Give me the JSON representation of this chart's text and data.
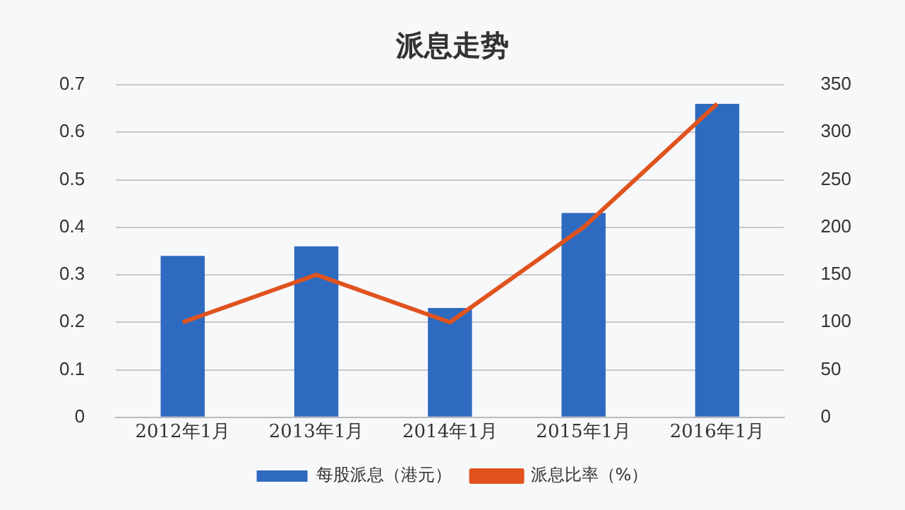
{
  "chart_data": {
    "type": "bar",
    "title": "派息走势",
    "categories": [
      "2012年1月",
      "2013年1月",
      "2014年1月",
      "2015年1月",
      "2016年1月"
    ],
    "series": [
      {
        "name": "每股派息（港元）",
        "color": "#2e6bc0",
        "values": [
          0.34,
          0.36,
          0.23,
          0.43,
          0.66
        ]
      },
      {
        "name": "派息比率（%）",
        "type": "line",
        "axis": "y2",
        "color": "#e0531e",
        "values": [
          100,
          150,
          100,
          200,
          330
        ]
      }
    ],
    "ylim": [
      0,
      0.7
    ],
    "yticks": [
      0,
      0.1,
      0.2,
      0.3,
      0.4,
      0.5,
      0.6,
      0.7
    ],
    "y2lim": [
      0,
      350
    ],
    "y2ticks": [
      0,
      50,
      100,
      150,
      200,
      250,
      300,
      350
    ],
    "grid": "y",
    "legend": "bottom",
    "marker": "none"
  }
}
